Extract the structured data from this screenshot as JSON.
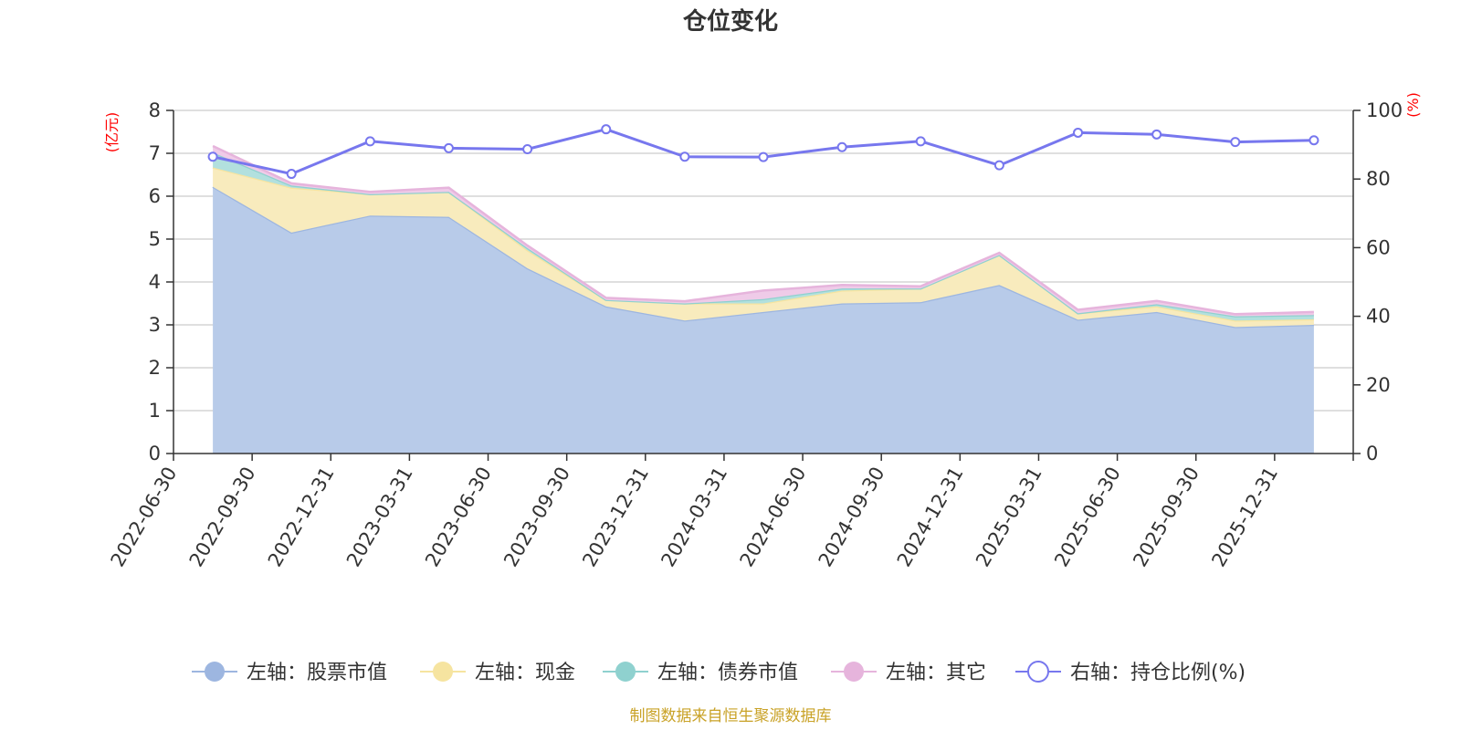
{
  "title": "仓位变化",
  "source_note": "制图数据来自恒生聚源数据库",
  "chart_data": {
    "type": "area",
    "title": "仓位变化",
    "categories": [
      "2022-06-30",
      "2022-09-30",
      "2022-12-31",
      "2023-03-31",
      "2023-06-30",
      "2023-09-30",
      "2023-12-31",
      "2024-03-31",
      "2024-06-30",
      "2024-09-30",
      "2024-12-31",
      "2025-03-31",
      "2025-06-30",
      "2025-09-30",
      "2025-12-31"
    ],
    "left_axis": {
      "unit": "(亿元)",
      "ylim": [
        0,
        8
      ],
      "ticks": [
        0,
        1,
        2,
        3,
        4,
        5,
        6,
        7,
        8
      ]
    },
    "right_axis": {
      "unit": "(%)",
      "ylim": [
        0,
        100
      ],
      "ticks": [
        0,
        20,
        40,
        60,
        80,
        100
      ]
    },
    "grid": true,
    "legend_position": "bottom",
    "stacked_series": [
      {
        "name": "左轴：股票市值",
        "axis": "left",
        "color": "#9db6e0",
        "fill": "#b8cbe9",
        "values": [
          6.22,
          5.15,
          5.55,
          5.52,
          4.32,
          3.43,
          3.1,
          3.3,
          3.5,
          3.53,
          3.93,
          3.12,
          3.3,
          2.95,
          3.0
        ]
      },
      {
        "name": "左轴：现金",
        "axis": "left",
        "color": "#f6e4a0",
        "fill": "#f8ebbd",
        "values": [
          0.45,
          1.05,
          0.5,
          0.58,
          0.42,
          0.15,
          0.4,
          0.2,
          0.3,
          0.32,
          0.7,
          0.15,
          0.13,
          0.15,
          0.13
        ]
      },
      {
        "name": "左轴：债券市值",
        "axis": "left",
        "color": "#8fd1cf",
        "fill": "#b2e0de",
        "values": [
          0.35,
          0.05,
          0.0,
          0.0,
          0.05,
          0.0,
          0.0,
          0.1,
          0.05,
          0.0,
          0.0,
          0.0,
          0.05,
          0.1,
          0.1
        ]
      },
      {
        "name": "左轴：其它",
        "axis": "left",
        "color": "#e6b4dc",
        "fill": "#efcbe8",
        "values": [
          0.15,
          0.05,
          0.05,
          0.1,
          0.06,
          0.05,
          0.05,
          0.2,
          0.08,
          0.05,
          0.05,
          0.08,
          0.08,
          0.05,
          0.07
        ]
      }
    ],
    "line_series": [
      {
        "name": "右轴：持仓比例(%)",
        "axis": "right",
        "color": "#7777ee",
        "values": [
          86.5,
          81.5,
          91.0,
          89.0,
          88.7,
          94.5,
          86.5,
          86.4,
          89.3,
          91.0,
          84.0,
          93.5,
          93.0,
          90.8,
          91.3
        ]
      }
    ]
  }
}
